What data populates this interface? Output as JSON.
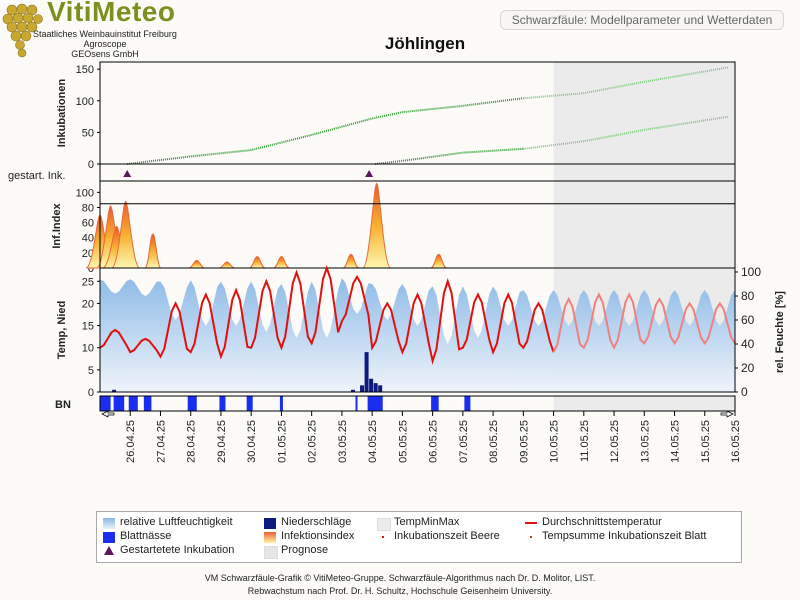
{
  "header": {
    "brand": "VitiMeteo",
    "org_lines": [
      "Staatliches Weinbauinstitut Freiburg",
      "Agroscope",
      "GEOsens GmbH"
    ],
    "subtitle": "Schwarzfäule: Modellparameter und Wetterdaten",
    "title": "Jöhlingen"
  },
  "colors": {
    "humidity": "#9cc3ea",
    "precip": "#0d1a7e",
    "leaf_wet": "#1a2ef0",
    "temp": "#e01010",
    "infection": "#f7b030",
    "incubation": "#2a9a2a",
    "forecast": "#ebebeb",
    "marker": "#5a1a5a"
  },
  "chart_data": {
    "type": "line",
    "x_dates": [
      "26.04.25",
      "27.04.25",
      "28.04.25",
      "29.04.25",
      "30.04.25",
      "01.05.25",
      "02.05.25",
      "03.05.25",
      "04.05.25",
      "05.05.25",
      "06.05.25",
      "07.05.25",
      "08.05.25",
      "09.05.25",
      "10.05.25",
      "11.05.25",
      "12.05.25",
      "13.05.25",
      "14.05.25",
      "15.05.25",
      "16.05.25"
    ],
    "x_start": "25.04.25",
    "prognose_from": "10.05.25",
    "panels": {
      "incubations": {
        "ylabel": "Inkubationen",
        "yticks": [
          0,
          50,
          100,
          150
        ],
        "ylim": [
          0,
          155
        ],
        "series": [
          {
            "points": [
              [
                0.9,
                0
              ],
              [
                3.0,
                12
              ],
              [
                5.0,
                22
              ],
              [
                7.0,
                46
              ],
              [
                9.0,
                72
              ],
              [
                10.0,
                82
              ],
              [
                12.0,
                92
              ],
              [
                14.0,
                104
              ],
              [
                16.0,
                112
              ],
              [
                18.0,
                130
              ],
              [
                20.8,
                153
              ]
            ]
          },
          {
            "points": [
              [
                9.1,
                0
              ],
              [
                10.0,
                5
              ],
              [
                12.0,
                18
              ],
              [
                14.0,
                24
              ],
              [
                16.0,
                36
              ],
              [
                18.0,
                54
              ],
              [
                20.8,
                75
              ]
            ]
          }
        ]
      },
      "started_incubations": {
        "ylabel": "gestart. Ink.",
        "markers": [
          "26.04.25",
          "04.05.25"
        ]
      },
      "infection_index": {
        "ylabel": "Inf.Index",
        "yticks": [
          0,
          20,
          40,
          60,
          80,
          100
        ],
        "ylim": [
          0,
          115
        ],
        "threshold": 85,
        "peaks": [
          [
            0.0,
            70
          ],
          [
            0.35,
            82
          ],
          [
            0.55,
            55
          ],
          [
            0.85,
            88
          ],
          [
            1.75,
            45
          ],
          [
            3.2,
            10
          ],
          [
            4.2,
            8
          ],
          [
            5.2,
            15
          ],
          [
            6.0,
            15
          ],
          [
            8.3,
            18
          ],
          [
            9.15,
            112
          ],
          [
            11.2,
            18
          ]
        ]
      },
      "weather": {
        "ylabel_left": "Temp, Nied",
        "ylabel_right": "rel. Feuchte [%]",
        "yticks_left": [
          0,
          5,
          10,
          15,
          20,
          25
        ],
        "ylim_left": [
          0,
          28
        ],
        "yticks_right": [
          0,
          20,
          40,
          60,
          80,
          100
        ],
        "ylim_right": [
          0,
          100
        ],
        "precip_bars": [
          [
            8.6,
            1.5
          ],
          [
            8.75,
            9
          ],
          [
            8.9,
            3
          ],
          [
            9.05,
            2
          ],
          [
            9.2,
            1.5
          ],
          [
            0.4,
            0.5
          ],
          [
            8.3,
            0.5
          ]
        ],
        "temp_daily": [
          [
            10,
            14
          ],
          [
            9,
            12
          ],
          [
            8,
            20
          ],
          [
            9,
            22
          ],
          [
            8,
            23
          ],
          [
            10,
            25
          ],
          [
            10,
            27
          ],
          [
            11,
            28
          ],
          [
            16,
            26
          ],
          [
            10,
            20
          ],
          [
            9,
            22
          ],
          [
            7,
            25
          ],
          [
            10,
            22
          ],
          [
            9,
            22
          ],
          [
            10,
            20
          ],
          [
            9,
            21
          ],
          [
            10,
            22
          ],
          [
            10,
            22
          ],
          [
            11,
            21
          ],
          [
            11,
            20
          ],
          [
            11,
            20
          ]
        ],
        "humidity_daily": [
          [
            82,
            94
          ],
          [
            80,
            94
          ],
          [
            60,
            92
          ],
          [
            55,
            93
          ],
          [
            55,
            92
          ],
          [
            50,
            92
          ],
          [
            45,
            90
          ],
          [
            45,
            92
          ],
          [
            65,
            95
          ],
          [
            60,
            90
          ],
          [
            55,
            90
          ],
          [
            40,
            88
          ],
          [
            45,
            88
          ],
          [
            55,
            88
          ],
          [
            55,
            85
          ],
          [
            55,
            85
          ],
          [
            55,
            85
          ],
          [
            55,
            85
          ],
          [
            55,
            85
          ],
          [
            55,
            85
          ],
          [
            55,
            85
          ]
        ]
      },
      "leaf_wetness": {
        "ylabel": "BN",
        "intervals": [
          [
            0.0,
            0.35
          ],
          [
            0.45,
            0.8
          ],
          [
            0.95,
            1.25
          ],
          [
            1.45,
            1.7
          ],
          [
            2.9,
            3.2
          ],
          [
            3.95,
            4.15
          ],
          [
            4.85,
            5.05
          ],
          [
            5.95,
            6.05
          ],
          [
            8.45,
            8.5
          ],
          [
            8.85,
            9.35
          ],
          [
            10.95,
            11.2
          ],
          [
            12.05,
            12.25
          ]
        ]
      }
    }
  },
  "legend": {
    "items": [
      {
        "label": "relative Luftfeuchtigkeit",
        "symbol": "humidity"
      },
      {
        "label": "Niederschläge",
        "symbol": "precip"
      },
      {
        "label": "TempMinMax",
        "symbol": "tempminmax"
      },
      {
        "label": "Durchschnittstemperatur",
        "symbol": "temp"
      },
      {
        "label": "Blattnässe",
        "symbol": "leaf"
      },
      {
        "label": "Infektionsindex",
        "symbol": "infection"
      },
      {
        "label": "Inkubationszeit Beere",
        "symbol": "dot-red"
      },
      {
        "label": "Tempsumme Inkubationszeit Blatt",
        "symbol": "dot-brown"
      },
      {
        "label": "Gestartetete Inkubation",
        "symbol": "triangle"
      },
      {
        "label": "Prognose",
        "symbol": "prognose"
      }
    ]
  },
  "footer": {
    "line1": "VM Schwarzfäule-Grafik © VitiMeteo-Gruppe. Schwarzfäule-Algorithmus nach Dr. D. Molitor, LIST.",
    "line2": "Rebwachstum nach Prof. Dr. H. Schultz, Hochschule Geisenheim University."
  }
}
